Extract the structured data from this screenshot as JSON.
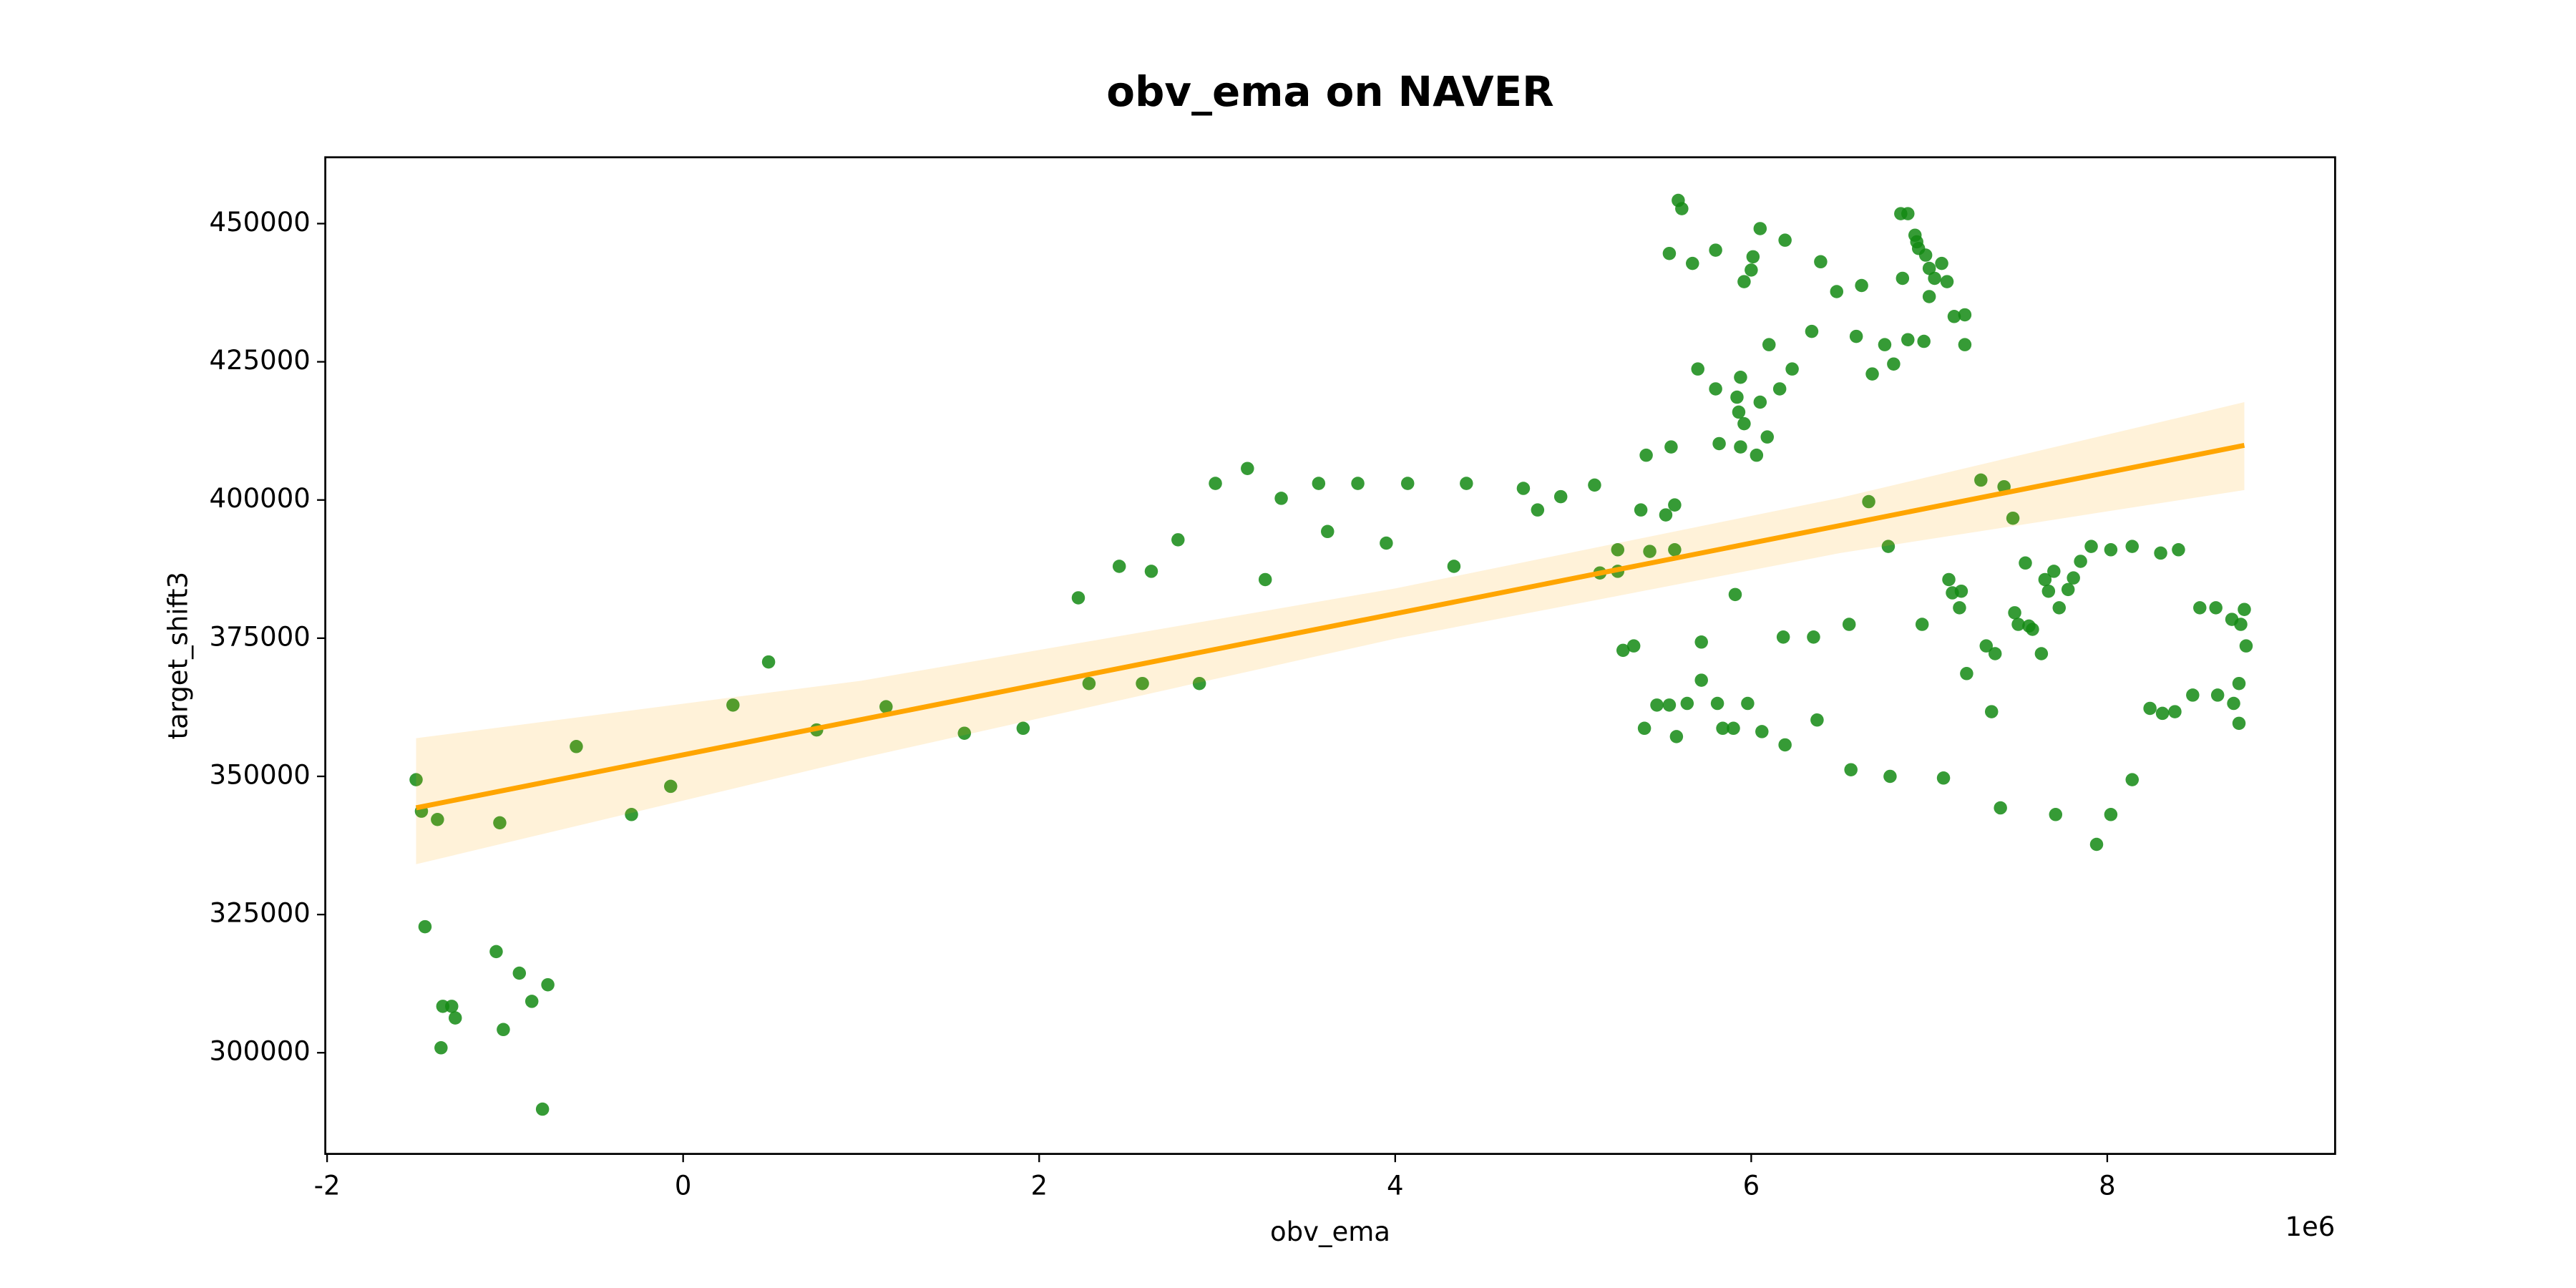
{
  "chart_data": {
    "type": "scatter",
    "title": "obv_ema on NAVER",
    "xlabel": "obv_ema",
    "ylabel": "target_shift3",
    "x_offset_label": "1e6",
    "color": "#138a13",
    "xlim": [
      -2.01,
      9.28
    ],
    "xticks": [
      -2,
      0,
      2,
      4,
      6,
      8
    ],
    "ylim": [
      281700,
      462000
    ],
    "yticks": [
      300000,
      325000,
      350000,
      375000,
      400000,
      425000,
      450000
    ],
    "grid": false,
    "x": [
      -1.5,
      -1.47,
      -1.38,
      -1.45,
      -1.35,
      -1.3,
      -1.28,
      -1.36,
      -1.05,
      -1.03,
      -0.92,
      -1.01,
      -0.85,
      -0.76,
      -0.79,
      -0.6,
      -0.29,
      -0.07,
      0.28,
      0.48,
      0.75,
      1.14,
      1.58,
      1.91,
      2.22,
      2.28,
      2.45,
      2.58,
      2.63,
      2.78,
      2.9,
      2.99,
      3.17,
      3.27,
      3.36,
      3.57,
      3.62,
      3.79,
      3.95,
      4.07,
      4.33,
      4.4,
      4.72,
      4.8,
      4.93,
      5.12,
      5.15,
      5.25,
      5.25,
      5.28,
      5.34,
      5.38,
      5.41,
      5.4,
      5.43,
      5.47,
      5.52,
      5.54,
      5.55,
      5.57,
      5.57,
      5.58,
      5.59,
      5.61,
      5.54,
      5.67,
      5.64,
      5.7,
      5.72,
      5.72,
      5.8,
      5.8,
      5.81,
      5.82,
      5.84,
      5.9,
      5.91,
      5.92,
      5.93,
      5.94,
      5.94,
      5.96,
      5.96,
      5.98,
      6.0,
      6.01,
      6.03,
      6.05,
      6.05,
      6.06,
      6.09,
      6.1,
      6.16,
      6.18,
      6.19,
      6.19,
      6.23,
      6.34,
      6.35,
      6.37,
      6.39,
      6.48,
      6.55,
      6.56,
      6.59,
      6.62,
      6.66,
      6.68,
      6.75,
      6.77,
      6.78,
      6.8,
      6.84,
      6.85,
      6.88,
      6.88,
      6.92,
      6.93,
      6.94,
      6.96,
      6.97,
      6.98,
      7.0,
      7.0,
      7.03,
      7.07,
      7.08,
      7.1,
      7.11,
      7.13,
      7.14,
      7.17,
      7.18,
      7.2,
      7.2,
      7.21,
      7.29,
      7.32,
      7.35,
      7.37,
      7.4,
      7.42,
      7.47,
      7.48,
      7.5,
      7.54,
      7.56,
      7.58,
      7.63,
      7.65,
      7.67,
      7.7,
      7.71,
      7.73,
      7.78,
      7.81,
      7.85,
      7.91,
      7.94,
      8.02,
      8.02,
      8.14,
      8.14,
      8.24,
      8.3,
      8.31,
      8.38,
      8.4,
      8.48,
      8.52,
      8.61,
      8.62,
      8.7,
      8.71,
      8.74,
      8.75,
      8.74,
      8.77,
      8.78
    ],
    "y": [
      349400,
      343700,
      342200,
      322800,
      308400,
      308400,
      306300,
      300900,
      318300,
      341600,
      314400,
      304200,
      309300,
      312300,
      289800,
      355400,
      343100,
      348200,
      362900,
      370700,
      358400,
      362600,
      357800,
      358700,
      382300,
      366800,
      388000,
      366800,
      387100,
      392800,
      366800,
      403000,
      405700,
      385600,
      400300,
      403000,
      394300,
      403000,
      392200,
      403000,
      388000,
      403000,
      402100,
      398200,
      400600,
      402700,
      386800,
      387100,
      391000,
      372800,
      373600,
      398200,
      408100,
      358700,
      390700,
      362900,
      397300,
      362900,
      409600,
      399100,
      391000,
      357200,
      454200,
      452700,
      444600,
      442800,
      363200,
      423700,
      374300,
      367400,
      445200,
      420100,
      363200,
      410200,
      358700,
      358700,
      382900,
      418600,
      415900,
      422200,
      409600,
      413800,
      439500,
      363200,
      441600,
      444000,
      408100,
      449100,
      417700,
      358100,
      411400,
      428100,
      420100,
      375200,
      447000,
      355700,
      423700,
      430500,
      375200,
      360200,
      443100,
      437700,
      377500,
      351200,
      429600,
      438800,
      399700,
      422800,
      428100,
      391600,
      350000,
      424600,
      451800,
      440100,
      451800,
      429000,
      447900,
      446700,
      445500,
      377500,
      428700,
      444300,
      441900,
      436800,
      440100,
      442800,
      349700,
      439500,
      385600,
      383200,
      433200,
      380500,
      383500,
      433500,
      428100,
      368600,
      403600,
      373600,
      361700,
      372200,
      344300,
      402400,
      396700,
      379600,
      377500,
      388600,
      377200,
      376600,
      372200,
      385600,
      383500,
      387100,
      343100,
      380500,
      383800,
      385900,
      388900,
      391600,
      337700,
      391000,
      343100,
      349400,
      391600,
      362300,
      390400,
      361400,
      361700,
      391000,
      364700,
      380500,
      380500,
      364700,
      378400,
      363200,
      366800,
      377500,
      359600,
      380200,
      373600
    ],
    "fit": {
      "color": "#ffa500",
      "x": [
        -1.5,
        1,
        4,
        6.5,
        8.77
      ],
      "y": [
        344311,
        360274,
        379429,
        395391,
        409885
      ],
      "ci_lower": [
        334100,
        353300,
        374900,
        390400,
        401800
      ],
      "ci_upper": [
        356900,
        367300,
        384000,
        400400,
        417700
      ]
    }
  }
}
